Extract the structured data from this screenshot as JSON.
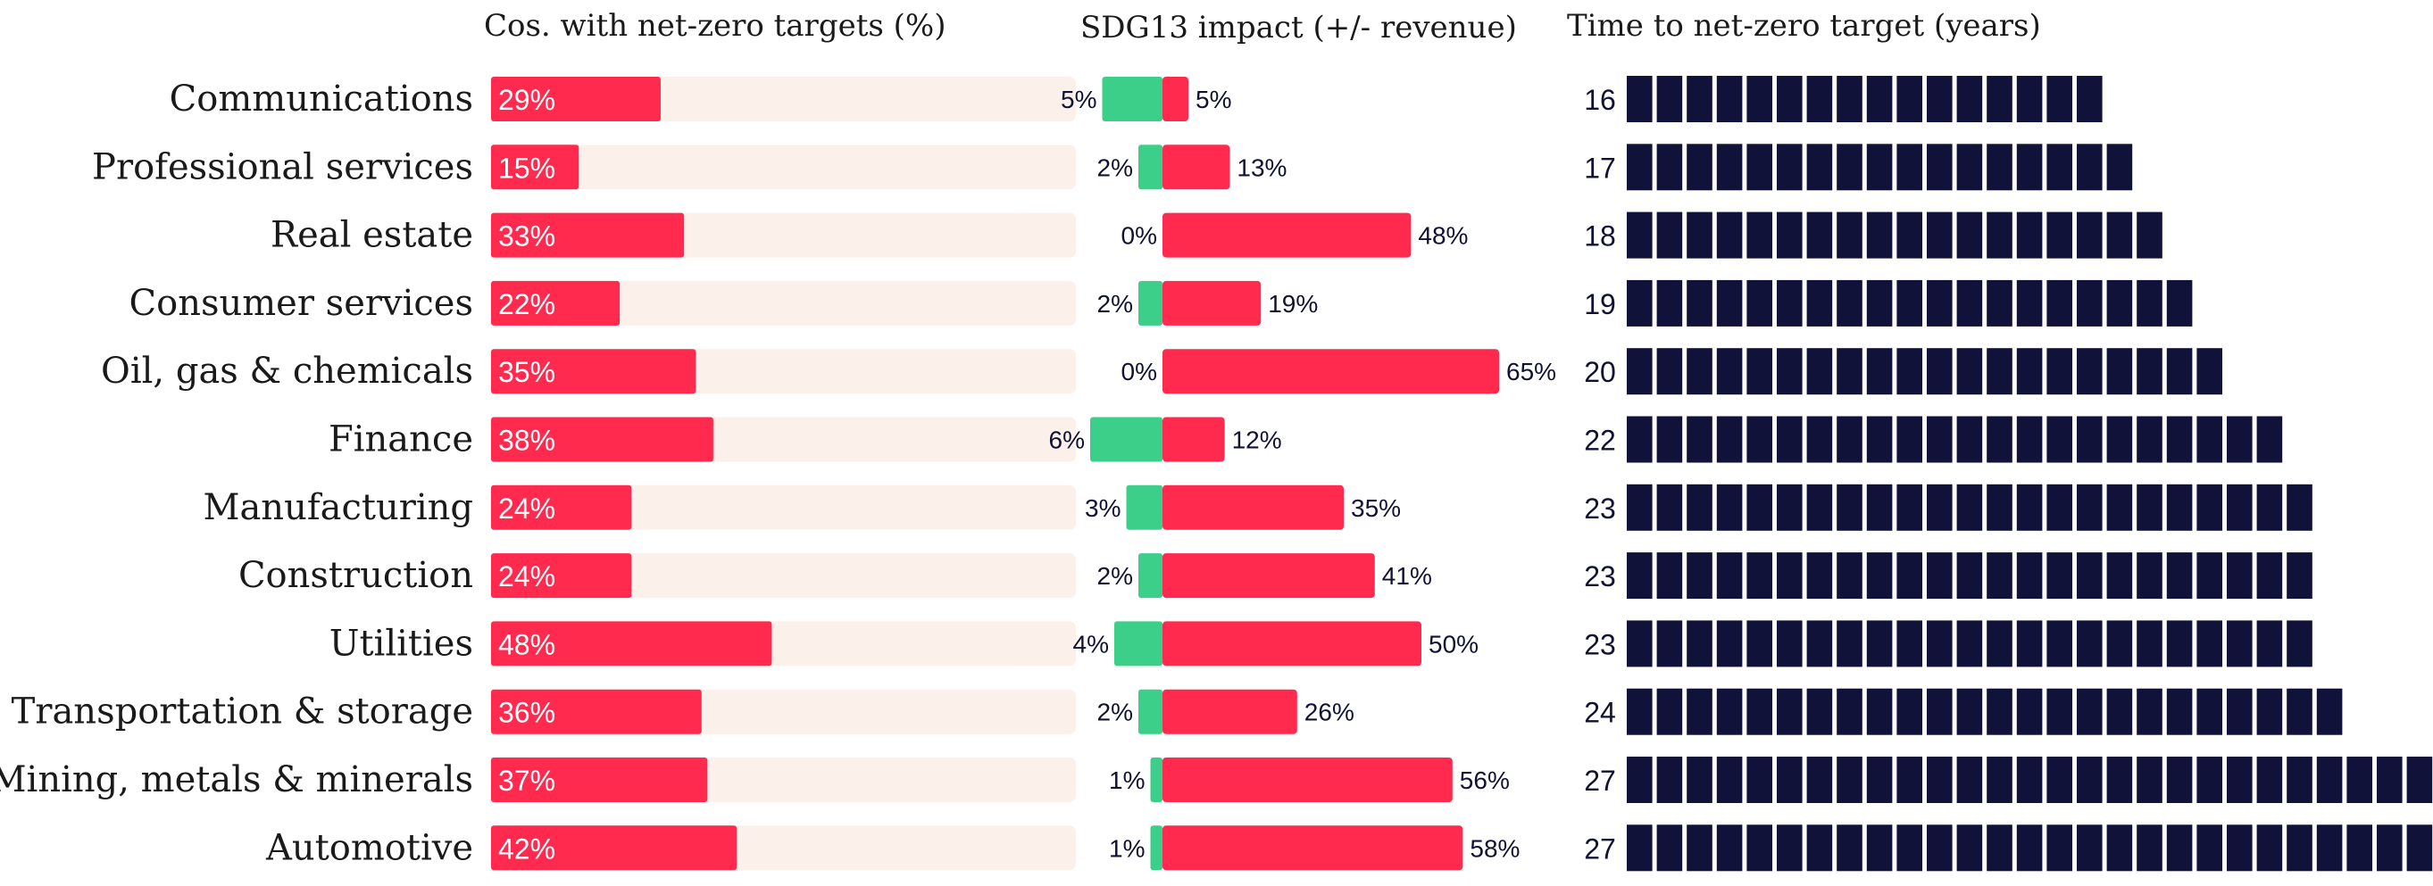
{
  "colors": {
    "red": "#ff2a4d",
    "green": "#3ccf8a",
    "track": "#fcf0ea",
    "navy": "#10123a"
  },
  "chart_data": [
    {
      "type": "bar",
      "title": "Cos. with net-zero targets (%)",
      "categories": [
        "Communications",
        "Professional services",
        "Real estate",
        "Consumer services",
        "Oil, gas & chemicals",
        "Finance",
        "Manufacturing",
        "Construction",
        "Utilities",
        "Transportation & storage",
        "Mining, metals & minerals",
        "Automotive"
      ],
      "values": [
        29,
        15,
        33,
        22,
        35,
        38,
        24,
        24,
        48,
        36,
        37,
        42
      ],
      "value_labels": [
        "29%",
        "15%",
        "33%",
        "22%",
        "35%",
        "38%",
        "24%",
        "24%",
        "48%",
        "36%",
        "37%",
        "42%"
      ],
      "xlim": [
        0,
        100
      ]
    },
    {
      "type": "bar",
      "title": "SDG13 impact (+/- revenue)",
      "categories": [
        "Communications",
        "Professional services",
        "Real estate",
        "Consumer services",
        "Oil, gas & chemicals",
        "Finance",
        "Manufacturing",
        "Construction",
        "Utilities",
        "Transportation & storage",
        "Mining, metals & minerals",
        "Automotive"
      ],
      "series": [
        {
          "values": [
            5,
            2,
            0,
            2,
            0,
            6,
            3,
            2,
            4,
            2,
            1,
            1
          ],
          "labels": [
            "5%",
            "2%",
            "0%",
            "2%",
            "0%",
            "6%",
            "3%",
            "2%",
            "4%",
            "2%",
            "1%",
            "1%"
          ]
        },
        {
          "values": [
            5,
            13,
            48,
            19,
            65,
            12,
            35,
            41,
            50,
            26,
            56,
            58
          ],
          "labels": [
            "5%",
            "13%",
            "48%",
            "19%",
            "65%",
            "12%",
            "35%",
            "41%",
            "50%",
            "26%",
            "56%",
            "58%"
          ]
        }
      ]
    },
    {
      "type": "bar",
      "title": "Time to net-zero target (years)",
      "categories": [
        "Communications",
        "Professional services",
        "Real estate",
        "Consumer services",
        "Oil, gas & chemicals",
        "Finance",
        "Manufacturing",
        "Construction",
        "Utilities",
        "Transportation & storage",
        "Mining, metals & minerals",
        "Automotive"
      ],
      "values": [
        16,
        17,
        18,
        19,
        20,
        22,
        23,
        23,
        23,
        24,
        27,
        27
      ],
      "value_labels": [
        "16",
        "17",
        "18",
        "19",
        "20",
        "22",
        "23",
        "23",
        "23",
        "24",
        "27",
        "27"
      ]
    }
  ]
}
